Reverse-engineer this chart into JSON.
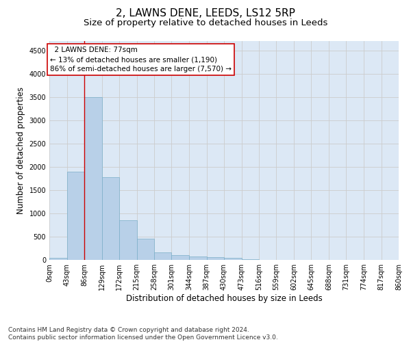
{
  "title": "2, LAWNS DENE, LEEDS, LS12 5RP",
  "subtitle": "Size of property relative to detached houses in Leeds",
  "xlabel": "Distribution of detached houses by size in Leeds",
  "ylabel": "Number of detached properties",
  "bar_values": [
    50,
    1900,
    3500,
    1780,
    850,
    450,
    160,
    100,
    70,
    60,
    40,
    10,
    5,
    3,
    2,
    1,
    1,
    0,
    0,
    0
  ],
  "bin_edges": [
    0,
    43,
    86,
    129,
    172,
    215,
    258,
    301,
    344,
    387,
    430,
    473,
    516,
    559,
    602,
    645,
    688,
    731,
    774,
    817,
    860
  ],
  "tick_labels": [
    "0sqm",
    "43sqm",
    "86sqm",
    "129sqm",
    "172sqm",
    "215sqm",
    "258sqm",
    "301sqm",
    "344sqm",
    "387sqm",
    "430sqm",
    "473sqm",
    "516sqm",
    "559sqm",
    "602sqm",
    "645sqm",
    "688sqm",
    "731sqm",
    "774sqm",
    "817sqm",
    "860sqm"
  ],
  "bar_color": "#b8d0e8",
  "bar_edge_color": "#7aaec8",
  "red_line_x": 86,
  "annotation_text": "  2 LAWNS DENE: 77sqm\n← 13% of detached houses are smaller (1,190)\n86% of semi-detached houses are larger (7,570) →",
  "annotation_box_color": "#ffffff",
  "annotation_border_color": "#cc0000",
  "ylim": [
    0,
    4700
  ],
  "yticks": [
    0,
    500,
    1000,
    1500,
    2000,
    2500,
    3000,
    3500,
    4000,
    4500
  ],
  "grid_color": "#cccccc",
  "bg_color": "#dce8f5",
  "footer_line1": "Contains HM Land Registry data © Crown copyright and database right 2024.",
  "footer_line2": "Contains public sector information licensed under the Open Government Licence v3.0.",
  "title_fontsize": 11,
  "subtitle_fontsize": 9.5,
  "axis_label_fontsize": 8.5,
  "tick_fontsize": 7,
  "annotation_fontsize": 7.5,
  "footer_fontsize": 6.5
}
